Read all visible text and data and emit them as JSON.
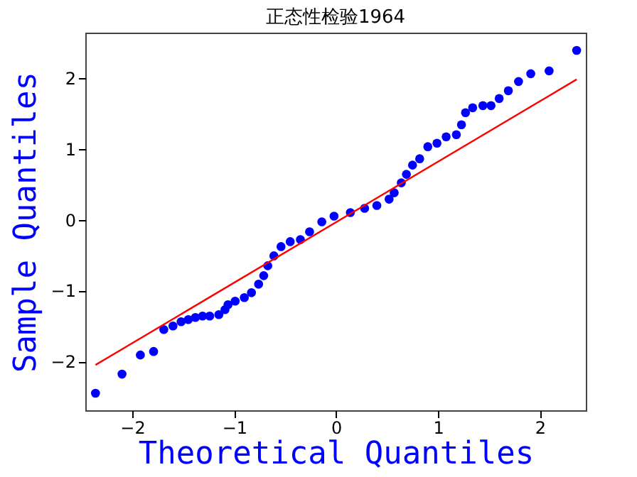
{
  "chart_data": {
    "type": "scatter",
    "title": "正态性检验1964",
    "xlabel": "Theoretical Quantiles",
    "ylabel": "Sample Quantiles",
    "xlim": [
      -2.46,
      2.45
    ],
    "ylim": [
      -2.69,
      2.64
    ],
    "xticks": [
      -2,
      -1,
      0,
      1,
      2
    ],
    "yticks": [
      -2,
      -1,
      0,
      1,
      2
    ],
    "grid": false,
    "series": [
      {
        "marker": "circle",
        "color": "#0000ff",
        "x": [
          -2.36,
          -2.1,
          -1.92,
          -1.79,
          -1.69,
          -1.6,
          -1.52,
          -1.45,
          -1.38,
          -1.31,
          -1.24,
          -1.15,
          -1.09,
          -1.06,
          -0.99,
          -0.9,
          -0.83,
          -0.76,
          -0.71,
          -0.67,
          -0.61,
          -0.54,
          -0.45,
          -0.35,
          -0.26,
          -0.14,
          -0.02,
          0.14,
          0.28,
          0.4,
          0.52,
          0.57,
          0.64,
          0.69,
          0.75,
          0.82,
          0.9,
          0.99,
          1.08,
          1.18,
          1.23,
          1.27,
          1.34,
          1.44,
          1.52,
          1.6,
          1.69,
          1.79,
          1.91,
          2.09,
          2.36
        ],
        "values": [
          -2.45,
          -2.18,
          -1.91,
          -1.86,
          -1.55,
          -1.5,
          -1.44,
          -1.41,
          -1.38,
          -1.36,
          -1.36,
          -1.34,
          -1.27,
          -1.2,
          -1.15,
          -1.1,
          -1.03,
          -0.91,
          -0.79,
          -0.65,
          -0.51,
          -0.38,
          -0.31,
          -0.28,
          -0.17,
          -0.03,
          0.05,
          0.1,
          0.16,
          0.2,
          0.29,
          0.38,
          0.52,
          0.64,
          0.77,
          0.86,
          1.03,
          1.08,
          1.17,
          1.2,
          1.34,
          1.51,
          1.58,
          1.61,
          1.61,
          1.71,
          1.82,
          1.95,
          2.06,
          2.1,
          2.39
        ]
      },
      {
        "type": "line",
        "color": "#ff0000",
        "x": [
          -2.36,
          2.36
        ],
        "values": [
          -2.05,
          1.98
        ]
      }
    ]
  }
}
